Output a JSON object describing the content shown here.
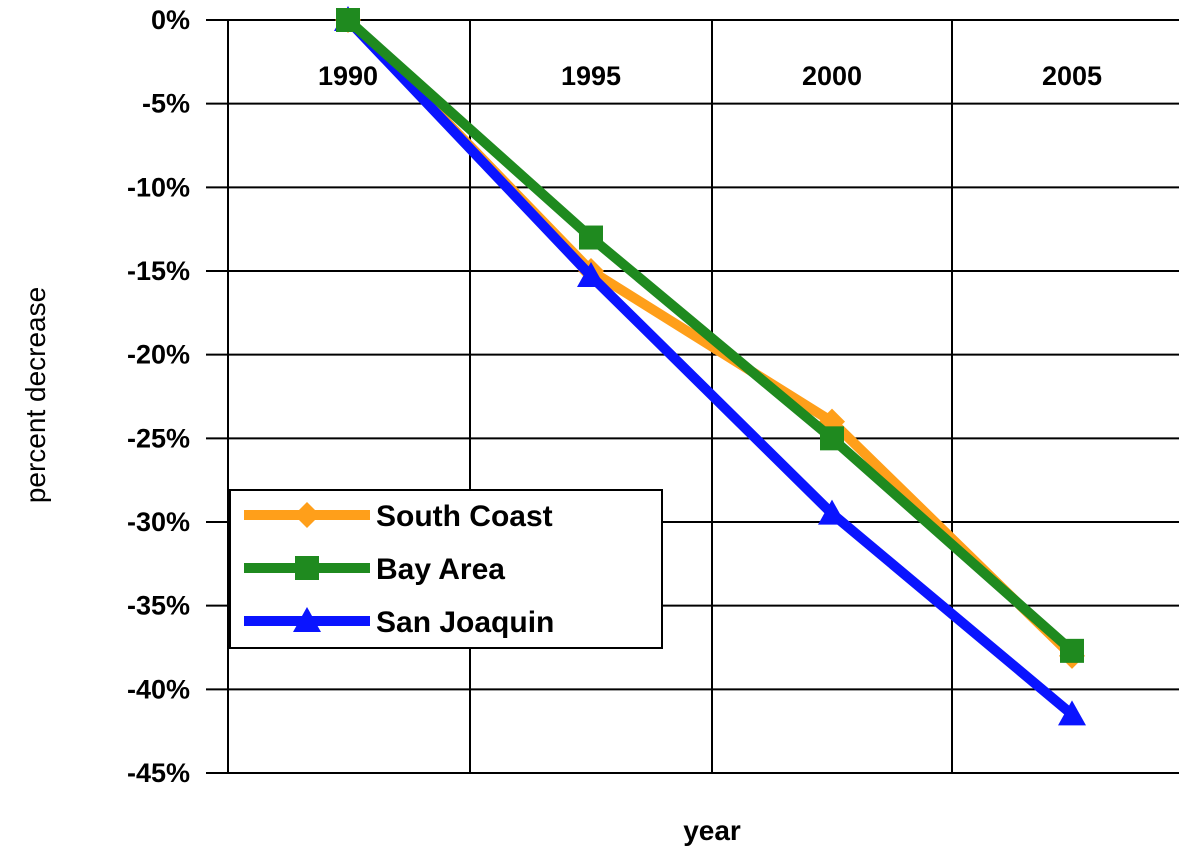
{
  "chart_data": {
    "type": "line",
    "title": "",
    "xlabel": "year",
    "ylabel": "percent decrease",
    "x": [
      1990,
      1995,
      2000,
      2005
    ],
    "x_tick_labels": [
      "1990",
      "1995",
      "2000",
      "2005"
    ],
    "y_tick_labels": [
      "0%",
      "-5%",
      "-10%",
      "-15%",
      "-20%",
      "-25%",
      "-30%",
      "-35%",
      "-40%",
      "-45%"
    ],
    "ylim": [
      -45,
      0
    ],
    "y_tick_step": 5,
    "grid": true,
    "legend_position": "bottom-left",
    "series": [
      {
        "name": "South Coast",
        "values": [
          0,
          -15,
          -24,
          -38
        ],
        "color": "#ff9f1a",
        "marker": "diamond"
      },
      {
        "name": "Bay Area",
        "values": [
          0,
          -13,
          -25,
          -37.7
        ],
        "color": "#1f8a1f",
        "marker": "square"
      },
      {
        "name": "San Joaquin",
        "values": [
          0,
          -15.3,
          -29.5,
          -41.5
        ],
        "color": "#0a14ff",
        "marker": "triangle"
      }
    ]
  }
}
